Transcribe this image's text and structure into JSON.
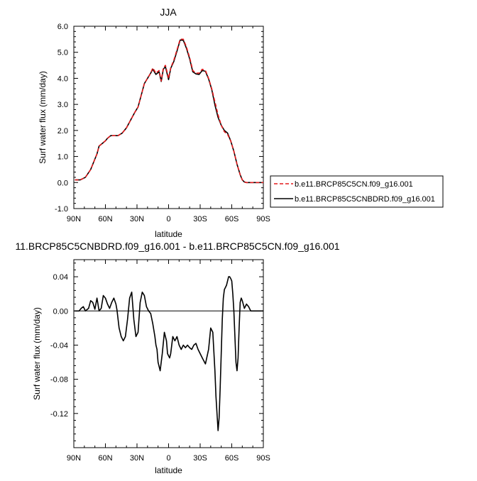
{
  "figure": {
    "xticks": [
      {
        "value": -90,
        "label": "90N"
      },
      {
        "value": -60,
        "label": "60N"
      },
      {
        "value": -30,
        "label": "30N"
      },
      {
        "value": 0,
        "label": "0"
      },
      {
        "value": 30,
        "label": "30S"
      },
      {
        "value": 60,
        "label": "60S"
      },
      {
        "value": 90,
        "label": "90S"
      }
    ]
  },
  "chart_data": [
    {
      "type": "line",
      "title": "JJA",
      "xlabel": "latitude",
      "ylabel": "Surf water flux (mm/day)",
      "xlim": [
        -90,
        90
      ],
      "ylim": [
        -1.0,
        6.0
      ],
      "yticks": [
        -1.0,
        0.0,
        1.0,
        2.0,
        3.0,
        4.0,
        5.0,
        6.0
      ],
      "ytick_labels": [
        "-1.0",
        "0.0",
        "1.0",
        "2.0",
        "3.0",
        "4.0",
        "5.0",
        "6.0"
      ],
      "legend_position": "right",
      "series": [
        {
          "name": "b.e11.BRCP85C5CN.f09_g16.001",
          "color": "#e31a1c",
          "dash": "dashed",
          "x": [
            -89,
            -84,
            -79,
            -74,
            -71,
            -68,
            -66,
            -63,
            -60,
            -58,
            -55,
            -52,
            -48,
            -44,
            -40,
            -36,
            -32,
            -29,
            -27,
            -25,
            -23,
            -20,
            -17,
            -15,
            -12,
            -9,
            -7,
            -5,
            -3,
            0,
            2,
            5,
            8,
            11,
            14,
            17,
            20,
            23,
            26,
            29,
            32,
            35,
            38,
            41,
            44,
            47,
            50,
            53,
            56,
            59,
            62,
            65,
            68,
            70,
            72,
            74,
            76,
            80,
            85,
            90
          ],
          "y": [
            0.1,
            0.1,
            0.2,
            0.5,
            0.8,
            1.1,
            1.4,
            1.5,
            1.6,
            1.7,
            1.8,
            1.8,
            1.8,
            1.9,
            2.1,
            2.4,
            2.7,
            2.9,
            3.2,
            3.5,
            3.8,
            4.0,
            4.2,
            4.4,
            4.2,
            4.3,
            3.9,
            4.4,
            4.5,
            4.0,
            4.4,
            4.7,
            5.1,
            5.5,
            5.5,
            5.2,
            4.8,
            4.3,
            4.2,
            4.2,
            4.35,
            4.3,
            4.0,
            3.6,
            3.1,
            2.6,
            2.2,
            1.95,
            1.85,
            1.6,
            1.2,
            0.7,
            0.3,
            0.1,
            0.02,
            0.0,
            0.0,
            0.0,
            0.0,
            0.0
          ]
        },
        {
          "name": "b.e11.BRCP85C5CNBDRD.f09_g16.001",
          "color": "#000000",
          "dash": "solid",
          "x": [
            -89,
            -84,
            -79,
            -74,
            -71,
            -68,
            -66,
            -63,
            -60,
            -58,
            -55,
            -52,
            -48,
            -44,
            -40,
            -36,
            -32,
            -29,
            -27,
            -25,
            -23,
            -20,
            -17,
            -15,
            -12,
            -9,
            -7,
            -5,
            -3,
            0,
            2,
            5,
            8,
            11,
            14,
            17,
            20,
            23,
            26,
            29,
            32,
            35,
            38,
            41,
            44,
            47,
            50,
            53,
            56,
            59,
            62,
            65,
            68,
            70,
            72,
            74,
            76,
            80,
            85,
            90
          ],
          "y": [
            0.1,
            0.1,
            0.2,
            0.5,
            0.8,
            1.1,
            1.4,
            1.5,
            1.6,
            1.7,
            1.8,
            1.8,
            1.8,
            1.9,
            2.1,
            2.4,
            2.7,
            2.9,
            3.2,
            3.5,
            3.8,
            4.0,
            4.2,
            4.35,
            4.15,
            4.25,
            3.88,
            4.35,
            4.45,
            3.95,
            4.38,
            4.65,
            5.05,
            5.47,
            5.46,
            5.15,
            4.75,
            4.25,
            4.17,
            4.15,
            4.3,
            4.27,
            3.98,
            3.57,
            2.98,
            2.5,
            2.2,
            2.0,
            1.9,
            1.6,
            1.2,
            0.7,
            0.3,
            0.1,
            0.02,
            0.0,
            0.0,
            0.0,
            0.0,
            0.0
          ]
        }
      ]
    },
    {
      "type": "line",
      "title": "11.BRCP85C5CNBDRD.f09_g16.001 - b.e11.BRCP85C5CN.f09_g16.001",
      "xlabel": "latitude",
      "ylabel": "Surf water flux (mm/day)",
      "xlim": [
        -90,
        90
      ],
      "ylim": [
        -0.16,
        0.06
      ],
      "yticks": [
        -0.12,
        -0.08,
        -0.04,
        0.0,
        0.04
      ],
      "ytick_labels": [
        "-0.12",
        "-0.08",
        "-0.04",
        "0.00",
        "0.04"
      ],
      "zero_line": true,
      "series": [
        {
          "name": "",
          "color": "#000000",
          "dash": "solid",
          "x": [
            -89,
            -85,
            -83,
            -81,
            -79,
            -76,
            -74,
            -72,
            -70,
            -68,
            -66,
            -64,
            -62,
            -60,
            -58,
            -56,
            -54,
            -52,
            -50,
            -49,
            -47,
            -45,
            -43,
            -41,
            -39,
            -37,
            -35,
            -33,
            -31,
            -29,
            -27,
            -25,
            -23,
            -21,
            -19,
            -17,
            -15,
            -13,
            -12,
            -11,
            -10,
            -8,
            -6,
            -4,
            -2,
            -1,
            1,
            2,
            4,
            6,
            8,
            10,
            12,
            14,
            16,
            18,
            20,
            22,
            24,
            26,
            28,
            30,
            32,
            35,
            38,
            40,
            42,
            44,
            45,
            46,
            47,
            48,
            49,
            50,
            51,
            52,
            53,
            55,
            57,
            58,
            59,
            60,
            61,
            62,
            63,
            64,
            65,
            66,
            67,
            68,
            69,
            70,
            72,
            74,
            76,
            78,
            80,
            85,
            90
          ],
          "y": [
            0.0,
            0.0,
            0.003,
            0.005,
            0.0,
            0.003,
            0.012,
            0.01,
            0.002,
            0.015,
            0.0,
            0.003,
            0.018,
            0.015,
            0.008,
            0.003,
            0.01,
            0.015,
            0.008,
            0.001,
            -0.02,
            -0.03,
            -0.035,
            -0.03,
            -0.01,
            0.015,
            0.022,
            -0.01,
            -0.03,
            -0.025,
            0.01,
            0.022,
            0.018,
            0.005,
            0.0,
            -0.003,
            -0.015,
            -0.03,
            -0.04,
            -0.045,
            -0.06,
            -0.07,
            -0.05,
            -0.025,
            -0.035,
            -0.05,
            -0.055,
            -0.05,
            -0.03,
            -0.035,
            -0.03,
            -0.04,
            -0.045,
            -0.04,
            -0.043,
            -0.04,
            -0.043,
            -0.045,
            -0.04,
            -0.038,
            -0.045,
            -0.05,
            -0.055,
            -0.062,
            -0.045,
            -0.02,
            -0.025,
            -0.07,
            -0.1,
            -0.12,
            -0.14,
            -0.125,
            -0.09,
            -0.05,
            -0.01,
            0.015,
            0.025,
            0.03,
            0.04,
            0.04,
            0.038,
            0.035,
            0.02,
            0.0,
            -0.03,
            -0.06,
            -0.07,
            -0.055,
            -0.02,
            0.01,
            0.015,
            0.012,
            0.003,
            0.008,
            0.005,
            0.0,
            0.0,
            0.0,
            0.0
          ]
        }
      ]
    }
  ]
}
